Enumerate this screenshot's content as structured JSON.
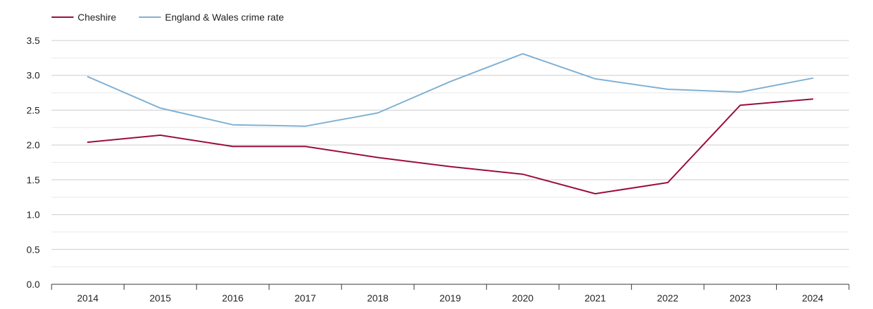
{
  "chart_data": {
    "type": "line",
    "title": "",
    "xlabel": "",
    "ylabel": "",
    "ylim": [
      0,
      3.5
    ],
    "yticks": [
      "0.0",
      "0.5",
      "1.0",
      "1.5",
      "2.0",
      "2.5",
      "3.0",
      "3.5"
    ],
    "categories": [
      "2014",
      "2015",
      "2016",
      "2017",
      "2018",
      "2019",
      "2020",
      "2021",
      "2022",
      "2023",
      "2024"
    ],
    "legend_position": "top-left",
    "grid": true,
    "series": [
      {
        "name": "Cheshire",
        "color": "#9b0b38",
        "values": [
          2.04,
          2.14,
          1.98,
          1.98,
          1.82,
          1.69,
          1.58,
          1.3,
          1.46,
          2.57,
          2.66
        ]
      },
      {
        "name": "England & Wales crime rate",
        "color": "#7eb0d4",
        "values": [
          2.98,
          2.53,
          2.29,
          2.27,
          2.46,
          2.91,
          3.31,
          2.95,
          2.8,
          2.76,
          2.96
        ]
      }
    ]
  }
}
